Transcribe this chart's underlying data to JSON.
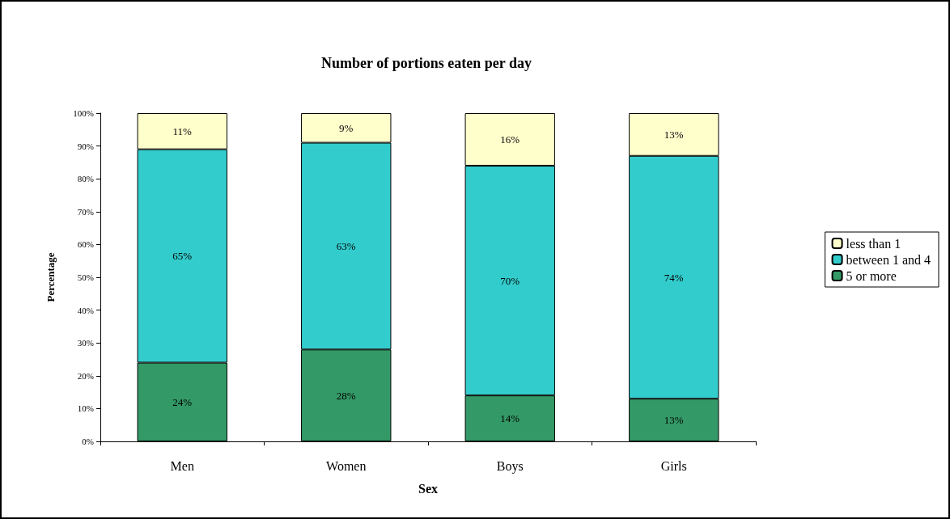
{
  "chart_data": {
    "type": "bar",
    "title": "Number of portions eaten per day",
    "xlabel": "Sex",
    "ylabel": "Percentage",
    "categories": [
      "Men",
      "Women",
      "Boys",
      "Girls"
    ],
    "stacked": true,
    "series": [
      {
        "name": "5 or more",
        "color": "#339966",
        "values": [
          24,
          28,
          14,
          13
        ],
        "value_labels": [
          "24%",
          "28%",
          "14%",
          "13%"
        ]
      },
      {
        "name": "between 1 and 4",
        "color": "#33cccc",
        "values": [
          65,
          63,
          70,
          74
        ],
        "value_labels": [
          "65%",
          "63%",
          "70%",
          "74%"
        ]
      },
      {
        "name": "less than 1",
        "color": "#ffffcc",
        "values": [
          11,
          9,
          16,
          13
        ],
        "value_labels": [
          "11%",
          "9%",
          "16%",
          "13%"
        ]
      }
    ],
    "ylim": [
      0,
      100
    ],
    "yticks": [
      {
        "value": 0,
        "label": "0%"
      },
      {
        "value": 10,
        "label": "10%"
      },
      {
        "value": 20,
        "label": "20%"
      },
      {
        "value": 30,
        "label": "30%"
      },
      {
        "value": 40,
        "label": "40%"
      },
      {
        "value": 50,
        "label": "50%"
      },
      {
        "value": 60,
        "label": "60%"
      },
      {
        "value": 70,
        "label": "70%"
      },
      {
        "value": 80,
        "label": "80%"
      },
      {
        "value": 90,
        "label": "90%"
      },
      {
        "value": 100,
        "label": "100%"
      }
    ],
    "grid": false,
    "legend": "right"
  }
}
